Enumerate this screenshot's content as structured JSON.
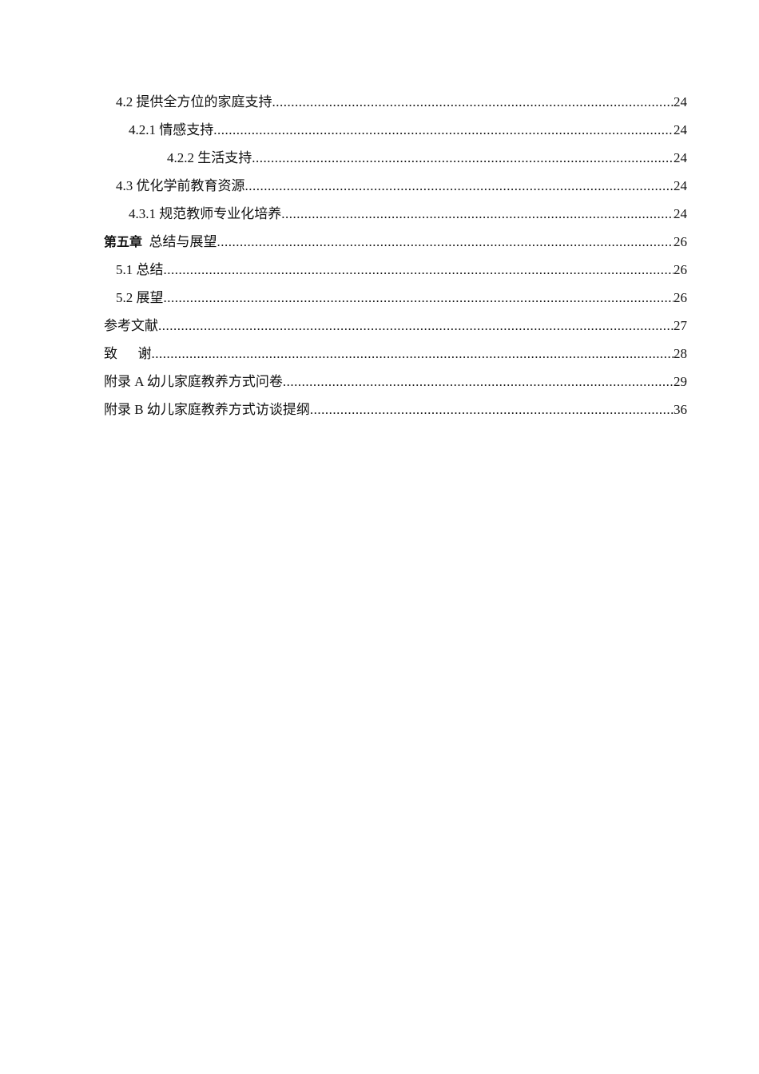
{
  "toc": [
    {
      "number": "4.2",
      "title": "提供全方位的家庭支持",
      "page": "24",
      "level": 2
    },
    {
      "number": "4.2.1",
      "title": "情感支持",
      "page": "24",
      "level": 3
    },
    {
      "number": "4.2.2",
      "title": "生活支持",
      "page": "24",
      "level": 4
    },
    {
      "number": "4.3",
      "title": "优化学前教育资源",
      "page": "24",
      "level": 2
    },
    {
      "number": "4.3.1",
      "title": "规范教师专业化培养",
      "page": "24",
      "level": 3
    },
    {
      "number": "第五章",
      "title": "总结与展望",
      "page": "26",
      "level": 1
    },
    {
      "number": "5.1",
      "title": "总结",
      "page": "26",
      "level": 2
    },
    {
      "number": "5.2",
      "title": "展望",
      "page": "26",
      "level": 2
    },
    {
      "number": "",
      "title": "参考文献",
      "page": "27",
      "level": 0
    },
    {
      "number": "",
      "title": "致      谢",
      "page": "28",
      "level": 0
    },
    {
      "number": "",
      "title": "附录 A 幼儿家庭教养方式问卷",
      "page": "29",
      "level": 0
    },
    {
      "number": "",
      "title": "附录 B 幼儿家庭教养方式访谈提纲",
      "page": "36",
      "level": 0
    }
  ]
}
